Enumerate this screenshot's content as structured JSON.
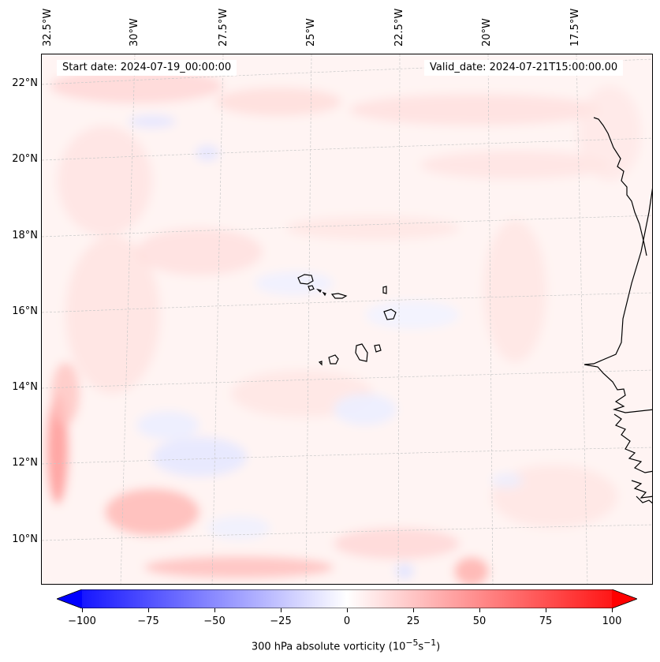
{
  "map": {
    "start_date": "Start date: 2024-07-19_00:00:00",
    "valid_date": "Valid_date: 2024-07-21T15:00:00.00",
    "lon_labels": [
      "32.5°W",
      "30°W",
      "27.5°W",
      "25°W",
      "22.5°W",
      "20°W",
      "17.5°W"
    ],
    "lat_labels": [
      "22°N",
      "20°N",
      "18°N",
      "16°N",
      "14°N",
      "12°N",
      "10°N"
    ],
    "field": "300 hPa absolute vorticity",
    "colormap": "bwr",
    "background_color": "#fff6f5",
    "coastline_color": "#000000"
  },
  "colorbar": {
    "min": -100,
    "max": 100,
    "ticks": [
      "−100",
      "−75",
      "−50",
      "−25",
      "0",
      "25",
      "50",
      "75",
      "100"
    ],
    "label_html": "300 hPa absolute vorticity (10<sup>−5</sup>s<sup>−1</sup>)",
    "extend": "both"
  }
}
